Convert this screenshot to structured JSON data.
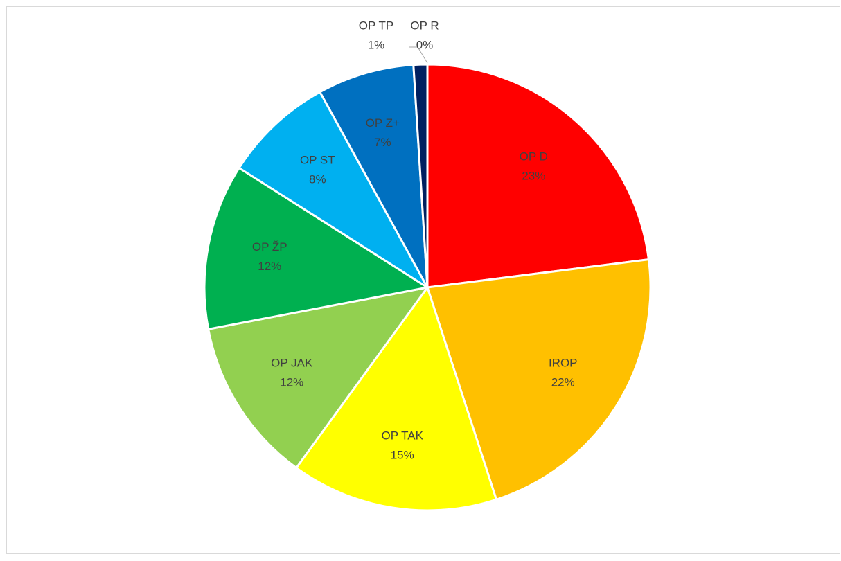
{
  "chart_data": {
    "type": "pie",
    "categories": [
      "OP D",
      "IROP",
      "OP TAK",
      "OP JAK",
      "OP ŽP",
      "OP ST",
      "OP Z+",
      "OP TP",
      "OP R"
    ],
    "values": [
      23,
      22,
      15,
      12,
      12,
      8,
      7,
      1,
      0
    ],
    "value_labels": [
      "23%",
      "22%",
      "15%",
      "12%",
      "12%",
      "8%",
      "7%",
      "1%",
      "0%"
    ],
    "colors": [
      "#ff0000",
      "#ffc000",
      "#ffff00",
      "#92d050",
      "#00b050",
      "#00b0f0",
      "#0070c0",
      "#002060",
      "#7030a0"
    ]
  }
}
